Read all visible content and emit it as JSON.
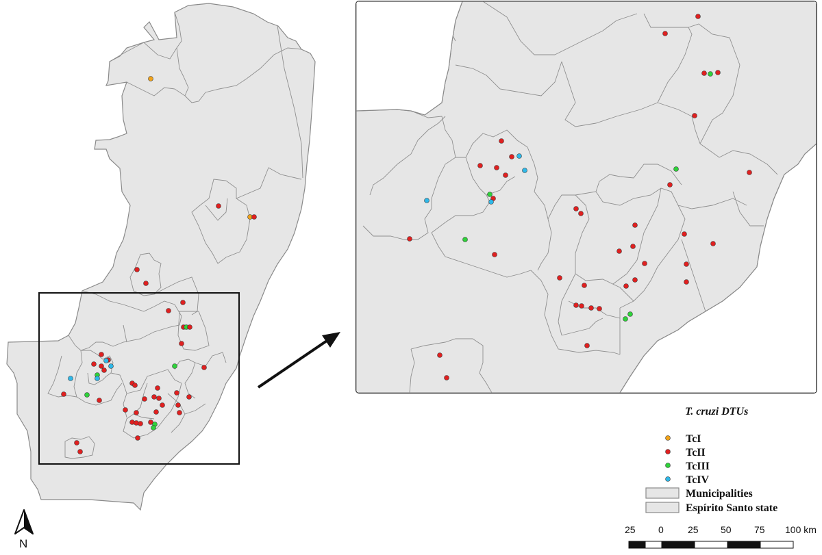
{
  "legend": {
    "title": "T. cruzi DTUs",
    "items": [
      {
        "label": "TcI",
        "color": "#f0a21a",
        "kind": "point"
      },
      {
        "label": "TcII",
        "color": "#e02020",
        "kind": "point"
      },
      {
        "label": "TcIII",
        "color": "#2fd23a",
        "kind": "point"
      },
      {
        "label": "TcIV",
        "color": "#2fb8e8",
        "kind": "point"
      },
      {
        "label": "Municipalities",
        "color": "#e6e6e6",
        "kind": "polygon"
      },
      {
        "label": "Espírito Santo state",
        "color": "#e6e6e6",
        "kind": "polygon"
      }
    ]
  },
  "scale_bar": {
    "labels": [
      "25",
      "0",
      "25",
      "50",
      "75",
      "100 km"
    ]
  },
  "north_arrow": {
    "label": "N"
  },
  "colors": {
    "land": "#e6e6e6",
    "boundary": "#8a8a8a",
    "TcI": "#f0a21a",
    "TcII": "#e02020",
    "TcIII": "#2fd23a",
    "TcIV": "#2fb8e8"
  }
}
